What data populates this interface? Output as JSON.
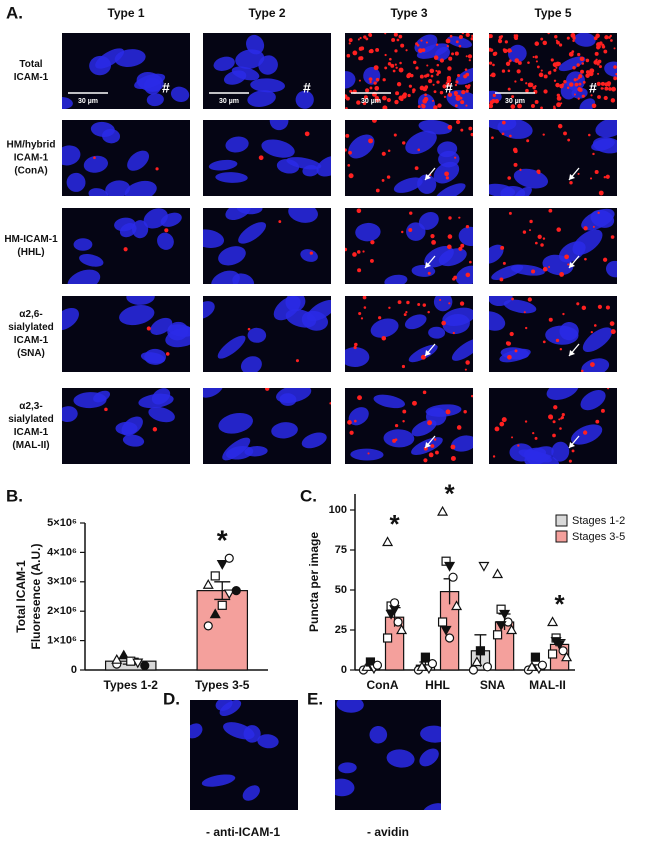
{
  "panel_a": {
    "label": "A.",
    "columns": [
      "Type 1",
      "Type 2",
      "Type 3",
      "Type 5"
    ],
    "rows": [
      [
        "Total",
        "ICAM-1"
      ],
      [
        "HM/hybrid",
        "ICAM-1",
        "(ConA)"
      ],
      [
        "HM-ICAM-1",
        "(HHL)"
      ],
      [
        "α2,6-",
        "sialylated",
        "ICAM-1",
        "(SNA)"
      ],
      [
        "α2,3-",
        "sialylated",
        "ICAM-1",
        "(MAL-II)"
      ]
    ],
    "scale_bar": "30 µm",
    "hash": "#"
  },
  "chart_data": [
    {
      "type": "bar",
      "label": "B.",
      "ylabel": [
        "Total  ICAM-1",
        "Fluoresence (A.U.)"
      ],
      "categories": [
        "Types 1-2",
        "Types 3-5"
      ],
      "values": [
        300000,
        2700000
      ],
      "errors": [
        100000,
        300000
      ],
      "colors": [
        "#d9d9d9",
        "#f4a09c"
      ],
      "points": [
        [
          200000,
          500000,
          300000,
          250000,
          150000,
          350000
        ],
        [
          1500000,
          1900000,
          2200000,
          2600000,
          2700000,
          2900000,
          3200000,
          3600000,
          3800000
        ]
      ],
      "significant": [
        false,
        true
      ],
      "significance_label": "*",
      "ylim": [
        0,
        5000000
      ],
      "yticks": [
        0,
        {
          "value": 1000000,
          "label": "1×10⁶"
        },
        {
          "value": 2000000,
          "label": "2×10⁶"
        },
        {
          "value": 3000000,
          "label": "3×10⁶"
        },
        {
          "value": 4000000,
          "label": "4×10⁶"
        },
        {
          "value": 5000000,
          "label": "5×10⁶"
        }
      ]
    },
    {
      "type": "grouped_bar",
      "label": "C.",
      "ylabel": "Puncta per image",
      "categories": [
        "ConA",
        "HHL",
        "SNA",
        "MAL-II"
      ],
      "series": [
        {
          "name": "Stages 1-2",
          "color": "#d9d9d9",
          "values": [
            2,
            3,
            12,
            2
          ],
          "errors": [
            1,
            2,
            10,
            1
          ],
          "points": [
            [
              0,
              2,
              5,
              1,
              3
            ],
            [
              0,
              2,
              8,
              1,
              4
            ],
            [
              0,
              5,
              12,
              65,
              2
            ],
            [
              0,
              2,
              8,
              1,
              3
            ]
          ],
          "significant": [
            false,
            false,
            false,
            false
          ]
        },
        {
          "name": "Stages 3-5",
          "color": "#f4a09c",
          "values": [
            33,
            49,
            30,
            16
          ],
          "errors": [
            6,
            8,
            5,
            3
          ],
          "points": [
            [
              80,
              40,
              38,
              30,
              25,
              20,
              35,
              42
            ],
            [
              99,
              68,
              65,
              58,
              40,
              30,
              25,
              20
            ],
            [
              60,
              38,
              35,
              30,
              25,
              22,
              28
            ],
            [
              30,
              20,
              16,
              12,
              8,
              10,
              18
            ]
          ],
          "significant": [
            true,
            true,
            false,
            true
          ]
        }
      ],
      "significance_label": "*",
      "ylim": [
        0,
        110
      ],
      "yticks": [
        0,
        25,
        50,
        75,
        100
      ]
    }
  ],
  "controls": [
    {
      "label": "D.",
      "caption": "- anti-ICAM-1"
    },
    {
      "label": "E.",
      "caption": "- avidin"
    }
  ]
}
